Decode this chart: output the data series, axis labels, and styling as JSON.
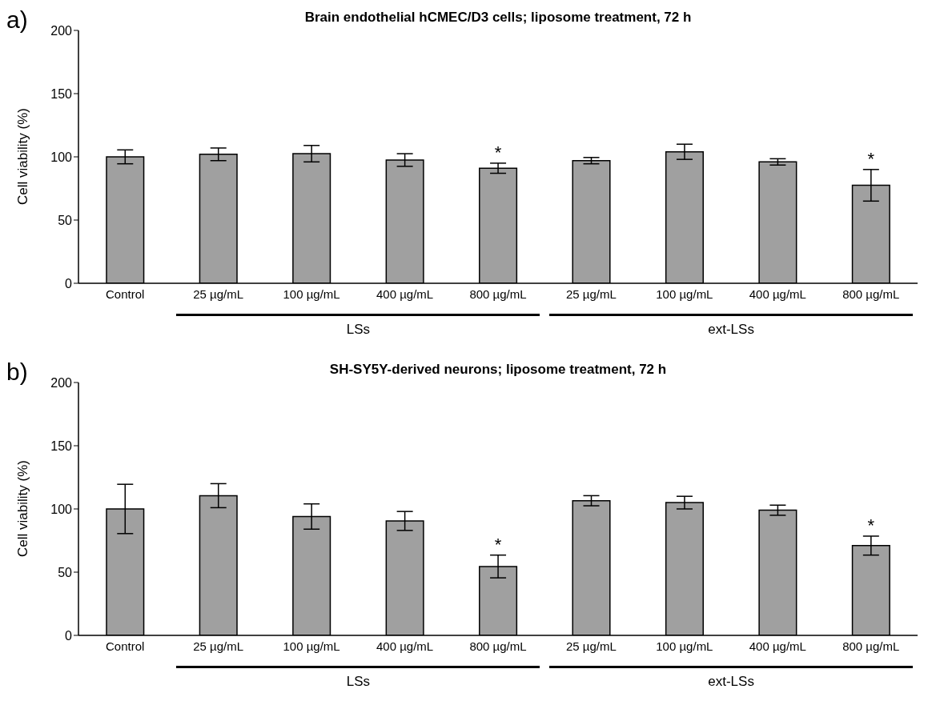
{
  "chart_data": [
    {
      "type": "bar",
      "title": "Brain endothelial hCMEC/D3 cells; liposome treatment, 72 h",
      "ylabel": "Cell viability (%)",
      "categories": [
        "Control",
        "25 µg/mL",
        "100 µg/mL",
        "400 µg/mL",
        "800 µg/mL",
        "25 µg/mL",
        "100 µg/mL",
        "400 µg/mL",
        "800 µg/mL"
      ],
      "values": [
        100,
        102,
        102.5,
        97.5,
        91,
        97,
        104,
        96,
        77.5
      ],
      "errors": [
        5.5,
        5,
        6.5,
        5,
        4,
        2.5,
        6,
        2.5,
        12.5
      ],
      "value_labels": [
        null,
        null,
        null,
        null,
        "*",
        null,
        null,
        null,
        "*"
      ],
      "color": "#a0a0a0",
      "ylim": [
        0,
        200
      ],
      "yticks": [
        0,
        50,
        100,
        150,
        200
      ],
      "annotations": [
        "a)",
        "LSs",
        "ext-LSs"
      ]
    },
    {
      "type": "bar",
      "title": "SH-SY5Y-derived neurons; liposome treatment, 72 h",
      "ylabel": "Cell viability (%)",
      "categories": [
        "Control",
        "25 µg/mL",
        "100 µg/mL",
        "400 µg/mL",
        "800 µg/mL",
        "25 µg/mL",
        "100 µg/mL",
        "400 µg/mL",
        "800 µg/mL"
      ],
      "values": [
        100,
        110.5,
        94,
        90.5,
        54.5,
        106.5,
        105,
        99,
        71
      ],
      "errors": [
        19.5,
        9.5,
        10,
        7.5,
        9,
        4,
        5,
        4,
        7.5
      ],
      "value_labels": [
        null,
        null,
        null,
        null,
        "*",
        null,
        null,
        null,
        "*"
      ],
      "color": "#a0a0a0",
      "ylim": [
        0,
        200
      ],
      "yticks": [
        0,
        50,
        100,
        150,
        200
      ],
      "annotations": [
        "b)",
        "LSs",
        "ext-LSs"
      ]
    }
  ]
}
